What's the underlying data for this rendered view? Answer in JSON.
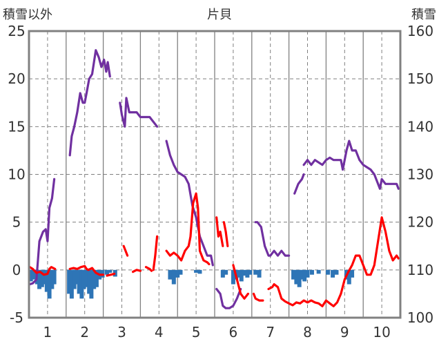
{
  "chart_data": {
    "type": "line",
    "title": "片貝",
    "left_axis_label": "積雪以外",
    "right_axis_label": "積雪",
    "x_ticks": [
      "1",
      "2",
      "3",
      "4",
      "5",
      "6",
      "7",
      "8",
      "9",
      "10"
    ],
    "xlim": [
      0.5,
      10.5
    ],
    "left_ylim": [
      -5,
      25
    ],
    "left_yticks": [
      -5,
      0,
      5,
      10,
      15,
      20,
      25
    ],
    "right_ylim": [
      100,
      160
    ],
    "right_yticks": [
      100,
      110,
      120,
      130,
      140,
      150,
      160
    ],
    "grid": true,
    "series": [
      {
        "id": "snow-depth",
        "color": "#7030a0",
        "axis": "right",
        "segments": [
          [
            [
              0.52,
              107
            ],
            [
              0.6,
              107.2
            ],
            [
              0.7,
              108
            ],
            [
              0.78,
              116
            ],
            [
              0.88,
              118
            ],
            [
              0.95,
              118.5
            ],
            [
              1.0,
              116
            ],
            [
              1.05,
              123
            ],
            [
              1.12,
              125
            ],
            [
              1.18,
              129
            ]
          ],
          [
            [
              1.6,
              134
            ],
            [
              1.65,
              138
            ],
            [
              1.72,
              140
            ],
            [
              1.8,
              143
            ],
            [
              1.88,
              147
            ],
            [
              1.95,
              145
            ],
            [
              2.0,
              145
            ],
            [
              2.05,
              147
            ],
            [
              2.12,
              150
            ],
            [
              2.2,
              151
            ],
            [
              2.3,
              156
            ],
            [
              2.38,
              154.5
            ],
            [
              2.45,
              152.5
            ],
            [
              2.52,
              154
            ],
            [
              2.58,
              151.5
            ],
            [
              2.62,
              153.5
            ],
            [
              2.68,
              150.5
            ]
          ],
          [
            [
              2.95,
              145
            ],
            [
              3.0,
              142.5
            ],
            [
              3.08,
              140
            ],
            [
              3.12,
              146
            ],
            [
              3.2,
              143
            ],
            [
              3.3,
              143
            ],
            [
              3.4,
              143
            ],
            [
              3.5,
              142
            ],
            [
              3.62,
              142
            ],
            [
              3.75,
              142
            ],
            [
              3.85,
              141
            ],
            [
              3.95,
              140
            ]
          ],
          [
            [
              4.2,
              137
            ],
            [
              4.3,
              134
            ],
            [
              4.4,
              132
            ],
            [
              4.5,
              130.5
            ],
            [
              4.6,
              130
            ],
            [
              4.7,
              129.5
            ],
            [
              4.8,
              128
            ],
            [
              4.9,
              123.5
            ],
            [
              5.0,
              121
            ],
            [
              5.1,
              117
            ],
            [
              5.2,
              115
            ],
            [
              5.3,
              113
            ],
            [
              5.4,
              113
            ],
            [
              5.45,
              111
            ]
          ],
          [
            [
              5.55,
              106
            ],
            [
              5.65,
              105
            ],
            [
              5.72,
              102.5
            ],
            [
              5.8,
              102
            ],
            [
              5.9,
              102
            ],
            [
              6.0,
              102.5
            ],
            [
              6.1,
              104
            ],
            [
              6.2,
              106
            ]
          ],
          [
            [
              6.6,
              120
            ],
            [
              6.65,
              120
            ],
            [
              6.75,
              119
            ],
            [
              6.85,
              115
            ],
            [
              6.95,
              113
            ],
            [
              7.0,
              113
            ],
            [
              7.1,
              114
            ],
            [
              7.2,
              113
            ],
            [
              7.3,
              114
            ],
            [
              7.4,
              113
            ],
            [
              7.5,
              113
            ]
          ],
          [
            [
              7.65,
              126
            ],
            [
              7.75,
              128
            ],
            [
              7.85,
              129
            ],
            [
              7.9,
              130
            ]
          ],
          [
            [
              7.9,
              132
            ],
            [
              8.0,
              133
            ],
            [
              8.1,
              132
            ],
            [
              8.2,
              133
            ],
            [
              8.3,
              132.5
            ],
            [
              8.4,
              132
            ],
            [
              8.5,
              133
            ],
            [
              8.6,
              133.5
            ],
            [
              8.7,
              133
            ],
            [
              8.8,
              133
            ],
            [
              8.9,
              133
            ],
            [
              8.95,
              131
            ],
            [
              9.05,
              135
            ],
            [
              9.12,
              137
            ],
            [
              9.2,
              135
            ],
            [
              9.3,
              135
            ],
            [
              9.4,
              133
            ],
            [
              9.5,
              132
            ],
            [
              9.6,
              131.5
            ],
            [
              9.7,
              131
            ],
            [
              9.8,
              130
            ],
            [
              9.9,
              128
            ],
            [
              9.95,
              127
            ],
            [
              10.0,
              129
            ],
            [
              10.1,
              128
            ],
            [
              10.2,
              128
            ],
            [
              10.3,
              128
            ],
            [
              10.4,
              128
            ],
            [
              10.45,
              127
            ]
          ]
        ]
      },
      {
        "id": "temperature",
        "color": "#ff0000",
        "axis": "left",
        "segments": [
          [
            [
              0.52,
              0.3
            ],
            [
              0.6,
              0.1
            ],
            [
              0.7,
              -0.3
            ],
            [
              0.8,
              -0.2
            ],
            [
              0.9,
              -0.5
            ],
            [
              1.0,
              -0.4
            ],
            [
              1.05,
              0.1
            ],
            [
              1.1,
              0.3
            ],
            [
              1.15,
              0.2
            ],
            [
              1.2,
              0.1
            ]
          ],
          [
            [
              1.6,
              0.1
            ],
            [
              1.7,
              0.2
            ],
            [
              1.8,
              0.1
            ],
            [
              1.9,
              0.3
            ],
            [
              2.0,
              0.4
            ],
            [
              2.05,
              0.1
            ],
            [
              2.1,
              0.0
            ],
            [
              2.2,
              0.2
            ],
            [
              2.3,
              -0.3
            ],
            [
              2.4,
              -0.5
            ],
            [
              2.5,
              -0.5
            ]
          ],
          [
            [
              2.6,
              -0.6
            ],
            [
              2.7,
              -0.5
            ],
            [
              2.8,
              -0.4
            ]
          ],
          [
            [
              3.05,
              2.5
            ],
            [
              3.1,
              2.0
            ],
            [
              3.15,
              1.5
            ]
          ],
          [
            [
              3.3,
              -0.2
            ],
            [
              3.4,
              0.0
            ],
            [
              3.5,
              -0.1
            ]
          ],
          [
            [
              3.65,
              0.3
            ],
            [
              3.75,
              0.1
            ],
            [
              3.8,
              -0.1
            ]
          ],
          [
            [
              3.85,
              0.0
            ],
            [
              3.9,
              1.5
            ],
            [
              3.95,
              3.5
            ]
          ],
          [
            [
              4.2,
              2.0
            ],
            [
              4.3,
              1.5
            ],
            [
              4.4,
              1.8
            ],
            [
              4.5,
              1.5
            ],
            [
              4.6,
              1.0
            ],
            [
              4.7,
              2.0
            ],
            [
              4.8,
              2.5
            ],
            [
              4.85,
              3.5
            ],
            [
              4.92,
              7.0
            ],
            [
              5.0,
              8.0
            ],
            [
              5.05,
              6.5
            ],
            [
              5.1,
              2.0
            ],
            [
              5.2,
              1.0
            ],
            [
              5.3,
              0.8
            ],
            [
              5.35,
              0.6
            ]
          ],
          [
            [
              5.55,
              5.5
            ],
            [
              5.6,
              3.5
            ],
            [
              5.65,
              4.0
            ],
            [
              5.72,
              2.5
            ]
          ],
          [
            [
              5.75,
              5.0
            ],
            [
              5.8,
              4.0
            ],
            [
              5.85,
              2.5
            ]
          ],
          [
            [
              6.0,
              0.5
            ],
            [
              6.1,
              -1.0
            ],
            [
              6.2,
              -2.5
            ],
            [
              6.3,
              -3.0
            ],
            [
              6.4,
              -2.5
            ]
          ],
          [
            [
              6.55,
              -2.5
            ],
            [
              6.6,
              -3.0
            ],
            [
              6.7,
              -3.2
            ],
            [
              6.8,
              -3.2
            ]
          ],
          [
            [
              6.95,
              -2.0
            ],
            [
              7.05,
              -1.8
            ],
            [
              7.1,
              -1.5
            ],
            [
              7.2,
              -1.8
            ],
            [
              7.3,
              -3.0
            ],
            [
              7.4,
              -3.3
            ],
            [
              7.5,
              -3.5
            ],
            [
              7.6,
              -3.7
            ],
            [
              7.7,
              -3.4
            ],
            [
              7.8,
              -3.5
            ],
            [
              7.9,
              -3.2
            ],
            [
              8.0,
              -3.4
            ],
            [
              8.1,
              -3.2
            ],
            [
              8.2,
              -3.4
            ],
            [
              8.3,
              -3.5
            ],
            [
              8.4,
              -3.8
            ],
            [
              8.5,
              -3.2
            ],
            [
              8.6,
              -3.5
            ],
            [
              8.7,
              -3.8
            ],
            [
              8.8,
              -3.4
            ],
            [
              8.9,
              -2.5
            ],
            [
              9.0,
              -1.0
            ],
            [
              9.1,
              -0.2
            ],
            [
              9.2,
              0.5
            ],
            [
              9.3,
              1.5
            ],
            [
              9.4,
              1.5
            ],
            [
              9.5,
              0.5
            ],
            [
              9.6,
              -0.5
            ],
            [
              9.7,
              -0.5
            ],
            [
              9.8,
              0.5
            ],
            [
              9.9,
              3.0
            ],
            [
              10.0,
              5.5
            ],
            [
              10.1,
              4.0
            ],
            [
              10.2,
              2.0
            ],
            [
              10.3,
              1.0
            ],
            [
              10.4,
              1.5
            ],
            [
              10.45,
              1.2
            ]
          ]
        ]
      },
      {
        "id": "precipitation",
        "color": "#2e75b6",
        "axis": "left",
        "type": "bar",
        "bars": [
          [
            0.55,
            -1.2
          ],
          [
            0.62,
            -1.0
          ],
          [
            0.72,
            -1.5
          ],
          [
            0.78,
            -2.0
          ],
          [
            0.85,
            -1.8
          ],
          [
            0.92,
            -1.5
          ],
          [
            0.98,
            -2.3
          ],
          [
            1.05,
            -3.0
          ],
          [
            1.12,
            -2.0
          ],
          [
            1.18,
            -1.5
          ],
          [
            1.58,
            -2.5
          ],
          [
            1.65,
            -3.0
          ],
          [
            1.72,
            -2.0
          ],
          [
            1.78,
            -1.5
          ],
          [
            1.85,
            -2.5
          ],
          [
            1.92,
            -3.0
          ],
          [
            1.98,
            -2.0
          ],
          [
            2.05,
            -1.8
          ],
          [
            2.12,
            -2.5
          ],
          [
            2.18,
            -3.0
          ],
          [
            2.25,
            -2.0
          ],
          [
            2.32,
            -1.8
          ],
          [
            2.4,
            -1.0
          ],
          [
            2.48,
            -0.8
          ],
          [
            2.6,
            -0.5
          ],
          [
            2.68,
            -0.3
          ],
          [
            2.82,
            -0.7
          ],
          [
            4.3,
            -1.0
          ],
          [
            4.4,
            -1.5
          ],
          [
            4.5,
            -0.8
          ],
          [
            4.58,
            -0.5
          ],
          [
            5.0,
            -0.3
          ],
          [
            5.1,
            -0.4
          ],
          [
            5.72,
            -0.8
          ],
          [
            5.8,
            -0.5
          ],
          [
            6.0,
            -1.5
          ],
          [
            6.08,
            -1.0
          ],
          [
            6.15,
            -0.8
          ],
          [
            6.22,
            -1.2
          ],
          [
            6.3,
            -0.6
          ],
          [
            6.38,
            -0.8
          ],
          [
            6.45,
            -0.5
          ],
          [
            6.6,
            -0.5
          ],
          [
            6.7,
            -0.8
          ],
          [
            7.62,
            -1.0
          ],
          [
            7.7,
            -1.5
          ],
          [
            7.78,
            -1.8
          ],
          [
            7.85,
            -1.0
          ],
          [
            7.92,
            -1.2
          ],
          [
            8.0,
            -0.8
          ],
          [
            8.12,
            -0.5
          ],
          [
            8.3,
            -0.4
          ],
          [
            8.55,
            -0.5
          ],
          [
            8.68,
            -0.8
          ],
          [
            8.78,
            -0.5
          ],
          [
            9.05,
            -1.0
          ],
          [
            9.12,
            -1.5
          ],
          [
            9.2,
            -0.8
          ]
        ]
      }
    ]
  }
}
